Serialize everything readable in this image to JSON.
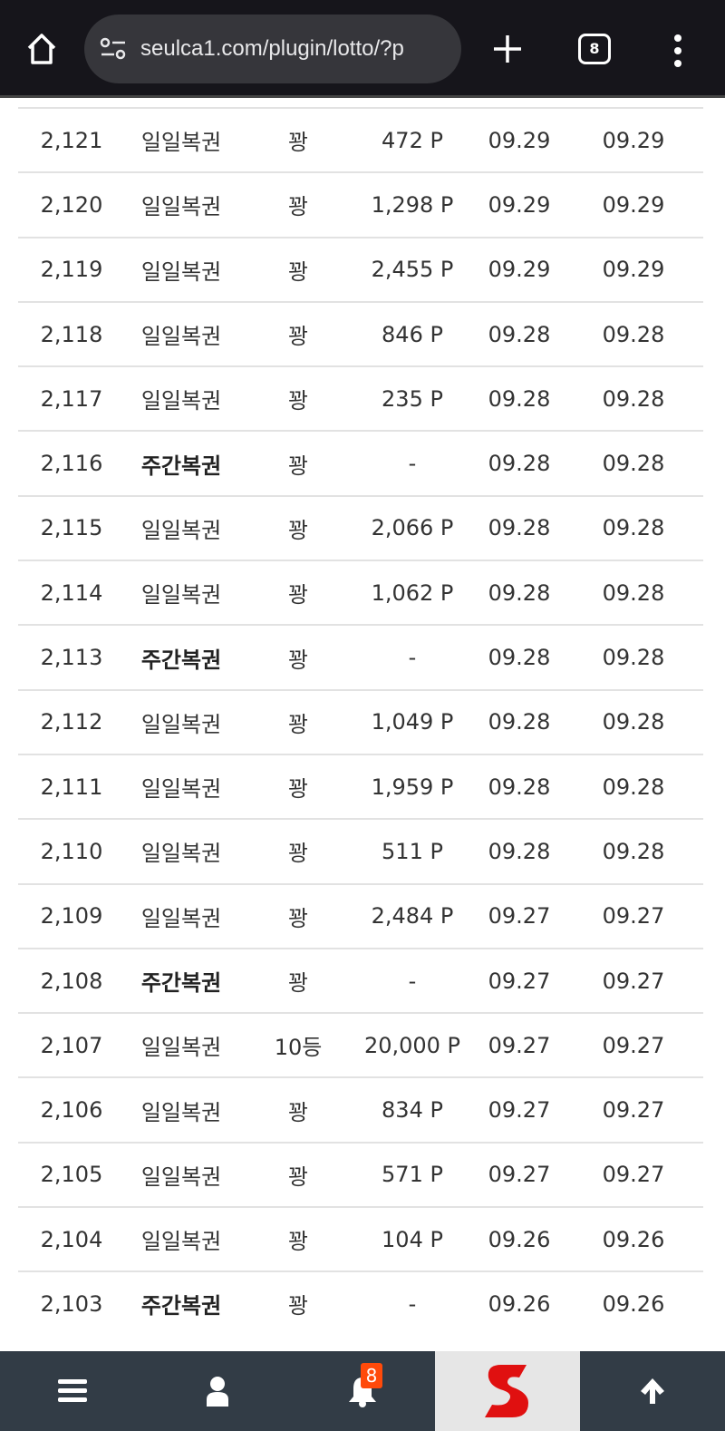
{
  "browser": {
    "url": "seulca1.com/plugin/lotto/?p",
    "tab_count": "8"
  },
  "rows": [
    {
      "no": "2,121",
      "type": "일일복권",
      "bold": false,
      "result": "꽝",
      "points": "472 P",
      "date1": "09.29",
      "date2": "09.29"
    },
    {
      "no": "2,120",
      "type": "일일복권",
      "bold": false,
      "result": "꽝",
      "points": "1,298 P",
      "date1": "09.29",
      "date2": "09.29"
    },
    {
      "no": "2,119",
      "type": "일일복권",
      "bold": false,
      "result": "꽝",
      "points": "2,455 P",
      "date1": "09.29",
      "date2": "09.29"
    },
    {
      "no": "2,118",
      "type": "일일복권",
      "bold": false,
      "result": "꽝",
      "points": "846 P",
      "date1": "09.28",
      "date2": "09.28"
    },
    {
      "no": "2,117",
      "type": "일일복권",
      "bold": false,
      "result": "꽝",
      "points": "235 P",
      "date1": "09.28",
      "date2": "09.28"
    },
    {
      "no": "2,116",
      "type": "주간복권",
      "bold": true,
      "result": "꽝",
      "points": "-",
      "date1": "09.28",
      "date2": "09.28"
    },
    {
      "no": "2,115",
      "type": "일일복권",
      "bold": false,
      "result": "꽝",
      "points": "2,066 P",
      "date1": "09.28",
      "date2": "09.28"
    },
    {
      "no": "2,114",
      "type": "일일복권",
      "bold": false,
      "result": "꽝",
      "points": "1,062 P",
      "date1": "09.28",
      "date2": "09.28"
    },
    {
      "no": "2,113",
      "type": "주간복권",
      "bold": true,
      "result": "꽝",
      "points": "-",
      "date1": "09.28",
      "date2": "09.28"
    },
    {
      "no": "2,112",
      "type": "일일복권",
      "bold": false,
      "result": "꽝",
      "points": "1,049 P",
      "date1": "09.28",
      "date2": "09.28"
    },
    {
      "no": "2,111",
      "type": "일일복권",
      "bold": false,
      "result": "꽝",
      "points": "1,959 P",
      "date1": "09.28",
      "date2": "09.28"
    },
    {
      "no": "2,110",
      "type": "일일복권",
      "bold": false,
      "result": "꽝",
      "points": "511 P",
      "date1": "09.28",
      "date2": "09.28"
    },
    {
      "no": "2,109",
      "type": "일일복권",
      "bold": false,
      "result": "꽝",
      "points": "2,484 P",
      "date1": "09.27",
      "date2": "09.27"
    },
    {
      "no": "2,108",
      "type": "주간복권",
      "bold": true,
      "result": "꽝",
      "points": "-",
      "date1": "09.27",
      "date2": "09.27"
    },
    {
      "no": "2,107",
      "type": "일일복권",
      "bold": false,
      "result": "10등",
      "points": "20,000 P",
      "date1": "09.27",
      "date2": "09.27"
    },
    {
      "no": "2,106",
      "type": "일일복권",
      "bold": false,
      "result": "꽝",
      "points": "834 P",
      "date1": "09.27",
      "date2": "09.27"
    },
    {
      "no": "2,105",
      "type": "일일복권",
      "bold": false,
      "result": "꽝",
      "points": "571 P",
      "date1": "09.27",
      "date2": "09.27"
    },
    {
      "no": "2,104",
      "type": "일일복권",
      "bold": false,
      "result": "꽝",
      "points": "104 P",
      "date1": "09.26",
      "date2": "09.26"
    },
    {
      "no": "2,103",
      "type": "주간복권",
      "bold": true,
      "result": "꽝",
      "points": "-",
      "date1": "09.26",
      "date2": "09.26"
    }
  ],
  "bottom_nav": {
    "notification_count": "8",
    "icons": [
      "menu-icon",
      "user-icon",
      "bell-icon",
      "site-logo",
      "arrow-up-icon"
    ]
  },
  "colors": {
    "badge": "#ff4a0a",
    "nav_bg": "#323c46",
    "logo": "#e01010"
  }
}
